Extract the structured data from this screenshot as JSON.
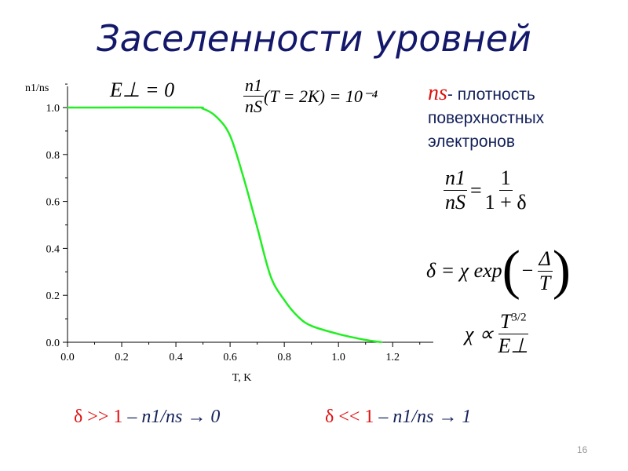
{
  "slide": {
    "title": "Заселенности уровней",
    "page_number": "16"
  },
  "annotations": {
    "e_perp": "E⊥ = 0",
    "ratio_num": "n1",
    "ratio_den": "nS",
    "ratio_rest": "(T = 2K) = 10⁻⁴",
    "ns_symbol": "ns",
    "ns_desc": "- плотность",
    "ns_desc2": "поверхностных",
    "ns_desc3": "электронов",
    "f1_num": "n1",
    "f1_den": "nS",
    "f1_eq": "=",
    "f1_rnum": "1",
    "f1_rden": "1 + δ",
    "f2_lhs": "δ = χ exp",
    "f2_num": "Δ",
    "f2_den": "T",
    "f2_minus": "−",
    "f3_lhs": "χ ∝",
    "f3_num": "T",
    "f3_exp": "3/2",
    "f3_den": "E⊥",
    "bottom_left_red": "δ >> 1",
    "bottom_left_blue": " – n1/ns → 0",
    "bottom_right_red": "δ << 1",
    "bottom_right_blue": " – n1/ns → 1"
  },
  "chart_data": {
    "type": "line",
    "xlabel": "T, K",
    "ylabel": "n1/ns",
    "xlim": [
      0,
      1.35
    ],
    "ylim": [
      0,
      1.0
    ],
    "xticks": [
      "0.0",
      "0.2",
      "0.4",
      "0.6",
      "0.8",
      "1.0",
      "1.2"
    ],
    "yticks": [
      "0.0",
      "0.2",
      "0.4",
      "0.6",
      "0.8",
      "1.0"
    ],
    "grid": false,
    "series": [
      {
        "color": "#22ee22",
        "x": [
          0,
          0.45,
          0.5,
          0.55,
          0.6,
          0.65,
          0.7,
          0.75,
          0.8,
          0.85,
          0.9,
          1.0,
          1.1,
          1.16
        ],
        "y": [
          1.0,
          1.0,
          0.995,
          0.96,
          0.88,
          0.7,
          0.49,
          0.28,
          0.18,
          0.11,
          0.07,
          0.035,
          0.01,
          0.0
        ]
      }
    ]
  }
}
